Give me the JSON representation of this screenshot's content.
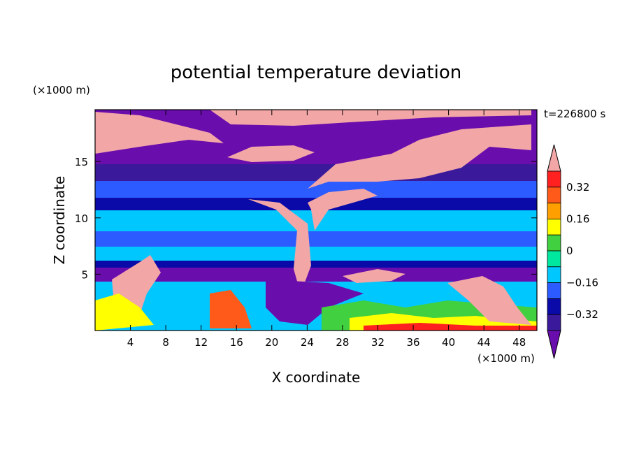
{
  "chart_data": {
    "type": "heatmap",
    "title": "potential temperature deviation",
    "time_label": "t=226800 s",
    "xlabel": "X coordinate",
    "ylabel": "Z coordinate",
    "x_unit": "(×1000 m)",
    "y_unit": "(×1000 m)",
    "xlim": [
      0,
      50
    ],
    "ylim": [
      0,
      19.6
    ],
    "x_ticks": [
      "4",
      "8",
      "12",
      "16",
      "20",
      "24",
      "28",
      "32",
      "36",
      "40",
      "44",
      "48"
    ],
    "y_ticks": [
      "5",
      "10",
      "15"
    ],
    "colorbar": {
      "labels": [
        "0.32",
        "0.16",
        "0",
        "−0.16",
        "−0.32"
      ],
      "label_values": [
        0.32,
        0.16,
        0,
        -0.16,
        -0.32
      ],
      "levels": [
        -0.4,
        -0.32,
        -0.24,
        -0.16,
        -0.08,
        0,
        0.08,
        0.16,
        0.24,
        0.32,
        0.4
      ],
      "colors": [
        "#6a0dad",
        "#3a1a9a",
        "#0a0aa8",
        "#2c5cff",
        "#00c8ff",
        "#00e8a0",
        "#40d040",
        "#ffff00",
        "#ffa000",
        "#ff5a1a",
        "#ff2020",
        "#f2a6a6"
      ],
      "over_color": "#f2a6a6",
      "under_color": "#6a0dad"
    }
  }
}
